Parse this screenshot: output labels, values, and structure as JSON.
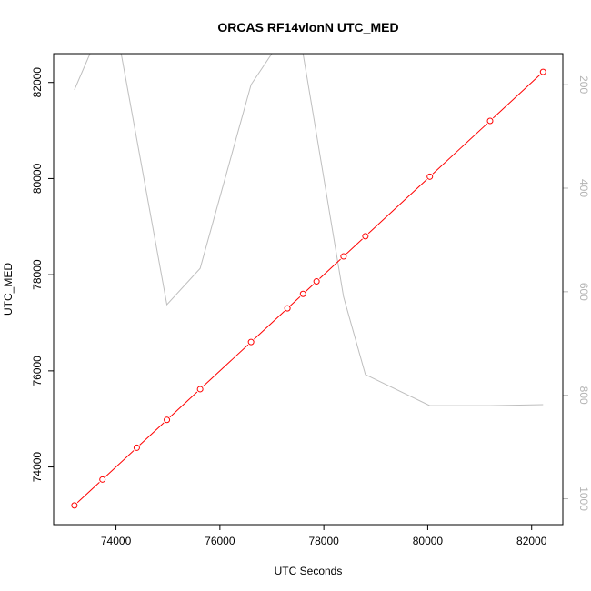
{
  "chart_data": {
    "type": "line",
    "title": "ORCAS RF14vlonN UTC_MED",
    "xlabel": "UTC Seconds",
    "ylabel": "UTC_MED",
    "xlim": [
      72800,
      82600
    ],
    "ylim": [
      72800,
      82600
    ],
    "y2lim": [
      1050,
      140
    ],
    "y2_reversed": true,
    "x_ticks": [
      74000,
      76000,
      78000,
      80000,
      82000
    ],
    "y_ticks": [
      74000,
      76000,
      78000,
      80000,
      82000
    ],
    "y2_ticks": [
      200,
      400,
      600,
      800,
      1000
    ],
    "grid": false,
    "series": [
      {
        "axis": "left",
        "color": "#ff0000",
        "style": "line+points",
        "x": [
          73200,
          73740,
          74400,
          74980,
          75620,
          76600,
          77300,
          77600,
          77860,
          78380,
          78800,
          80040,
          81200,
          82220
        ],
        "y": [
          73200,
          73740,
          74400,
          74980,
          75620,
          76600,
          77300,
          77600,
          77860,
          78380,
          78800,
          80040,
          81200,
          82220
        ]
      },
      {
        "axis": "right",
        "color": "#bebebe",
        "style": "line",
        "x": [
          73200,
          73500,
          74100,
          74980,
          75620,
          76600,
          77000,
          77600,
          77800,
          78380,
          78800,
          80040,
          81200,
          82220
        ],
        "y": [
          210,
          140,
          140,
          625,
          555,
          200,
          140,
          140,
          260,
          610,
          760,
          820,
          820,
          818
        ]
      }
    ]
  }
}
